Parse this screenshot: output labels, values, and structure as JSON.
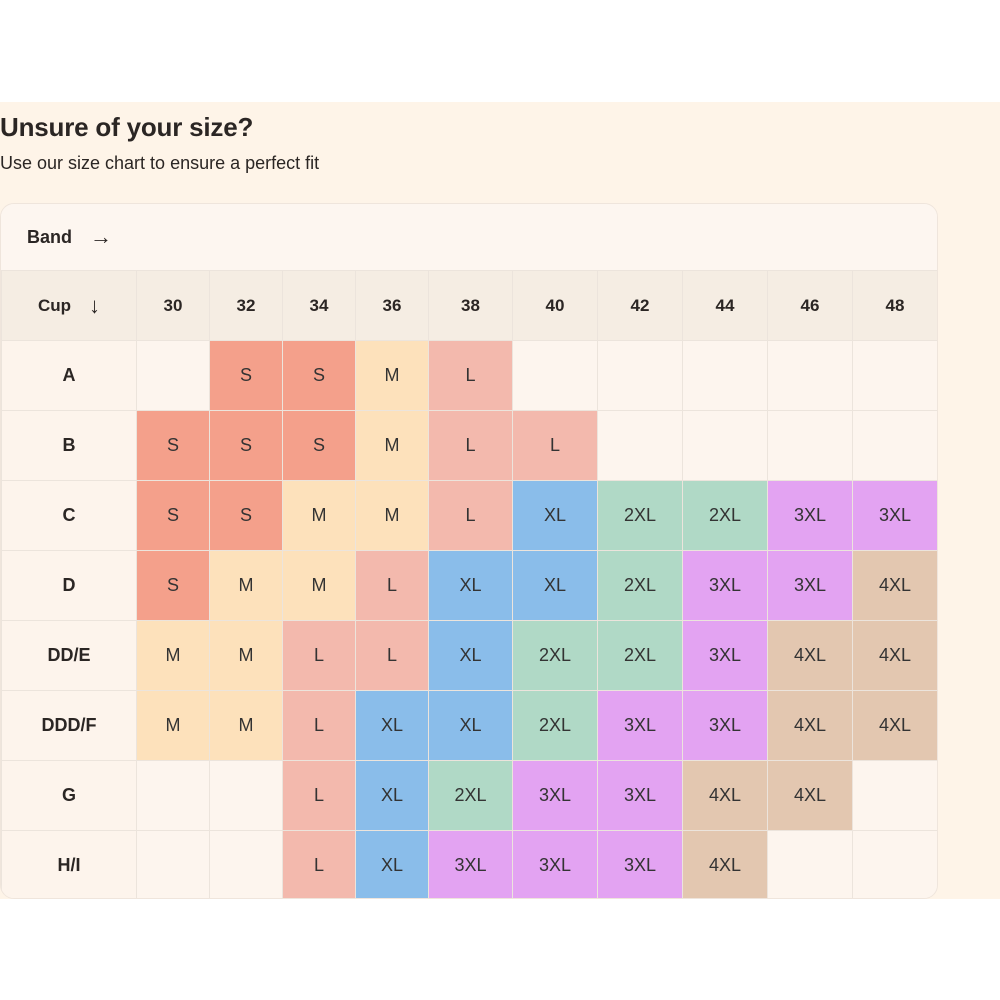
{
  "header": {
    "title": "Unsure of your size?",
    "subtitle": "Use our size chart to ensure a perfect fit"
  },
  "chart": {
    "band_label": "Band",
    "band_arrow": "→",
    "cup_label": "Cup",
    "cup_arrow": "↓",
    "bands": [
      "30",
      "32",
      "34",
      "36",
      "38",
      "40",
      "42",
      "44",
      "46",
      "48"
    ],
    "rows": [
      {
        "cup": "A",
        "sizes": [
          "",
          "S",
          "S",
          "M",
          "L",
          "",
          "",
          "",
          "",
          ""
        ]
      },
      {
        "cup": "B",
        "sizes": [
          "S",
          "S",
          "S",
          "M",
          "L",
          "L",
          "",
          "",
          "",
          ""
        ]
      },
      {
        "cup": "C",
        "sizes": [
          "S",
          "S",
          "M",
          "M",
          "L",
          "XL",
          "2XL",
          "2XL",
          "3XL",
          "3XL"
        ]
      },
      {
        "cup": "D",
        "sizes": [
          "S",
          "M",
          "M",
          "L",
          "XL",
          "XL",
          "2XL",
          "3XL",
          "3XL",
          "4XL"
        ]
      },
      {
        "cup": "DD/E",
        "sizes": [
          "M",
          "M",
          "L",
          "L",
          "XL",
          "2XL",
          "2XL",
          "3XL",
          "4XL",
          "4XL"
        ]
      },
      {
        "cup": "DDD/F",
        "sizes": [
          "M",
          "M",
          "L",
          "XL",
          "XL",
          "2XL",
          "3XL",
          "3XL",
          "4XL",
          "4XL"
        ]
      },
      {
        "cup": "G",
        "sizes": [
          "",
          "",
          "L",
          "XL",
          "2XL",
          "3XL",
          "3XL",
          "4XL",
          "4XL",
          ""
        ]
      },
      {
        "cup": "H/I",
        "sizes": [
          "",
          "",
          "L",
          "XL",
          "3XL",
          "3XL",
          "3XL",
          "4XL",
          "",
          ""
        ]
      }
    ]
  },
  "colors": {
    "panel_background": "#fef4e8",
    "S": "#f4a08b",
    "M": "#fde1bb",
    "L": "#f3b9ad",
    "XL": "#8abdea",
    "2XL": "#b0d9c6",
    "3XL": "#e3a3f2",
    "4XL": "#e3c7b0"
  }
}
